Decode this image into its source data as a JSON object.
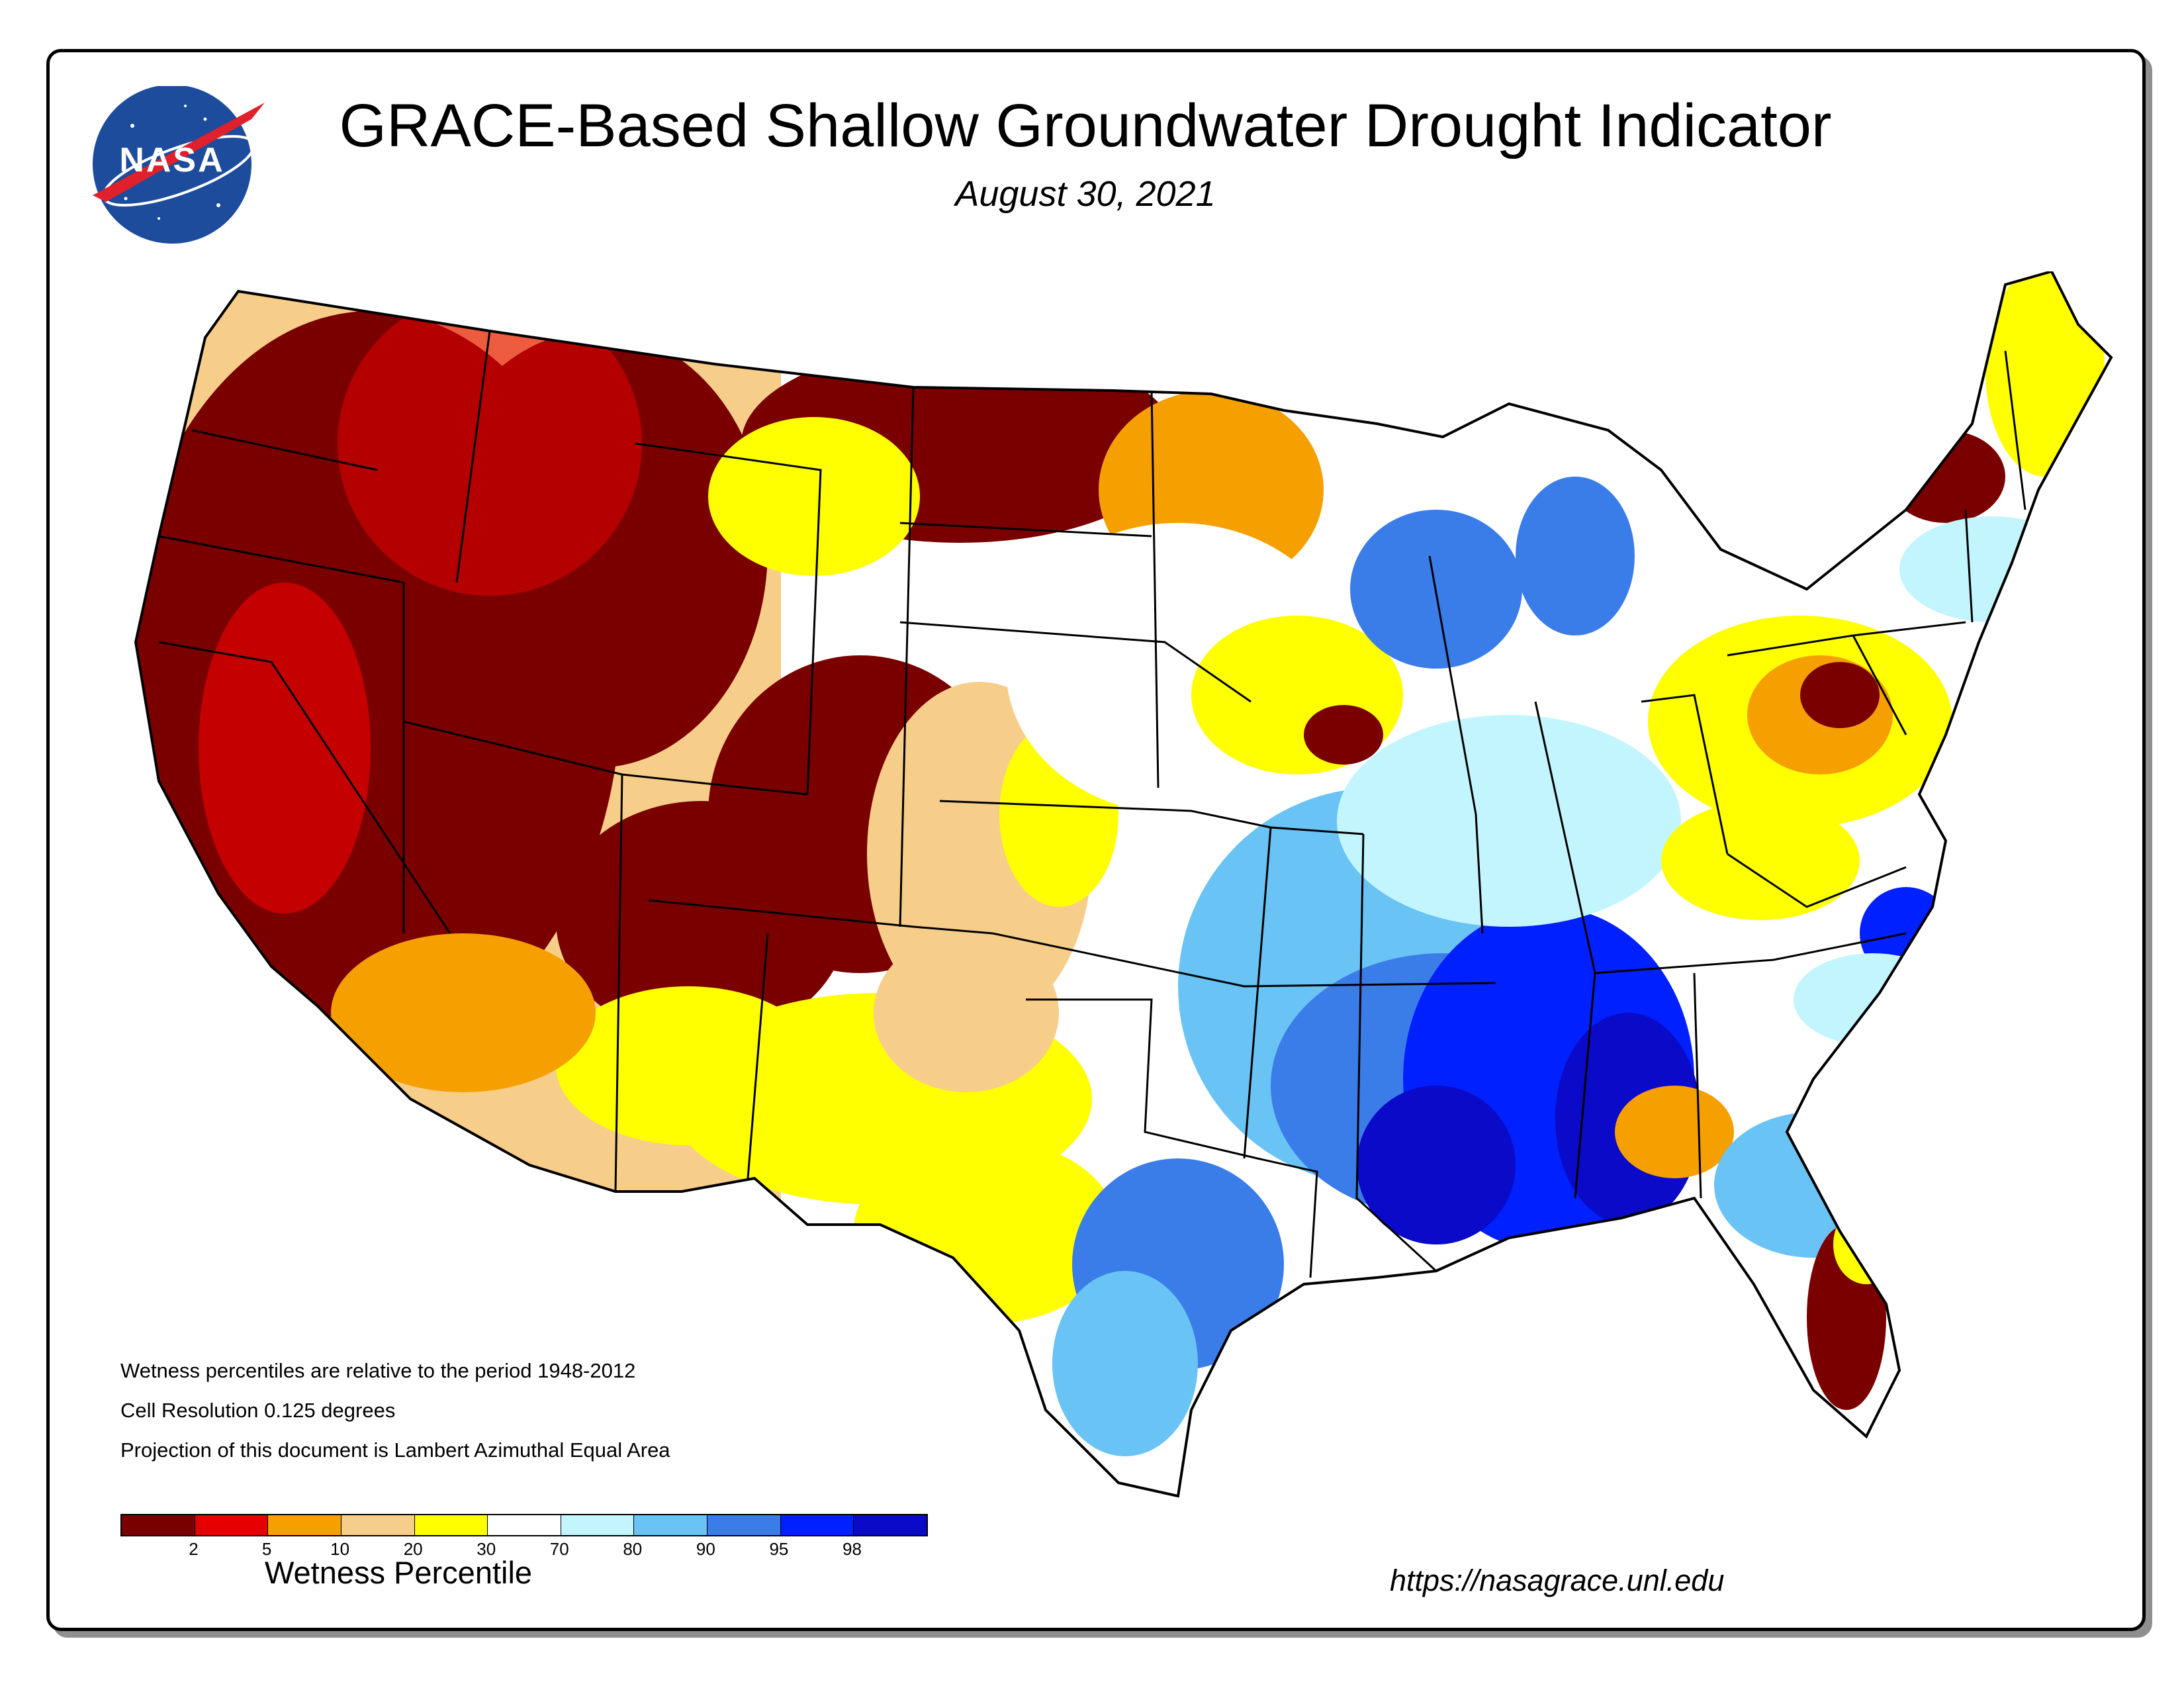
{
  "header": {
    "title": "GRACE-Based Shallow Groundwater Drought Indicator",
    "date": "August 30, 2021"
  },
  "logo": {
    "text": "NASA",
    "icon": "nasa-meatball-logo-icon"
  },
  "notes": [
    "Wetness percentiles are relative to the period 1948-2012",
    "Cell Resolution 0.125 degrees",
    "Projection of this document is Lambert Azimuthal Equal Area"
  ],
  "legend": {
    "title": "Wetness Percentile",
    "ticks": [
      "2",
      "5",
      "10",
      "20",
      "30",
      "70",
      "80",
      "90",
      "95",
      "98"
    ],
    "colors": [
      "#7a0000",
      "#e60000",
      "#f5a000",
      "#f7cd8a",
      "#ffff00",
      "#ffffff",
      "#c3f5ff",
      "#6ac3f5",
      "#3a7de8",
      "#0020ff",
      "#0a0ac8"
    ]
  },
  "url": "https://nasagrace.unl.edu",
  "map": {
    "region": "Contiguous United States",
    "palette": {
      "p2": "#7a0000",
      "p5": "#e60000",
      "p10": "#f5a000",
      "p20": "#f7cd8a",
      "p30": "#ffff00",
      "p70": "#ffffff",
      "p80": "#c3f5ff",
      "p90": "#6ac3f5",
      "p95": "#3a7de8",
      "p98": "#0020ff",
      "p100": "#0a0ac8"
    }
  }
}
